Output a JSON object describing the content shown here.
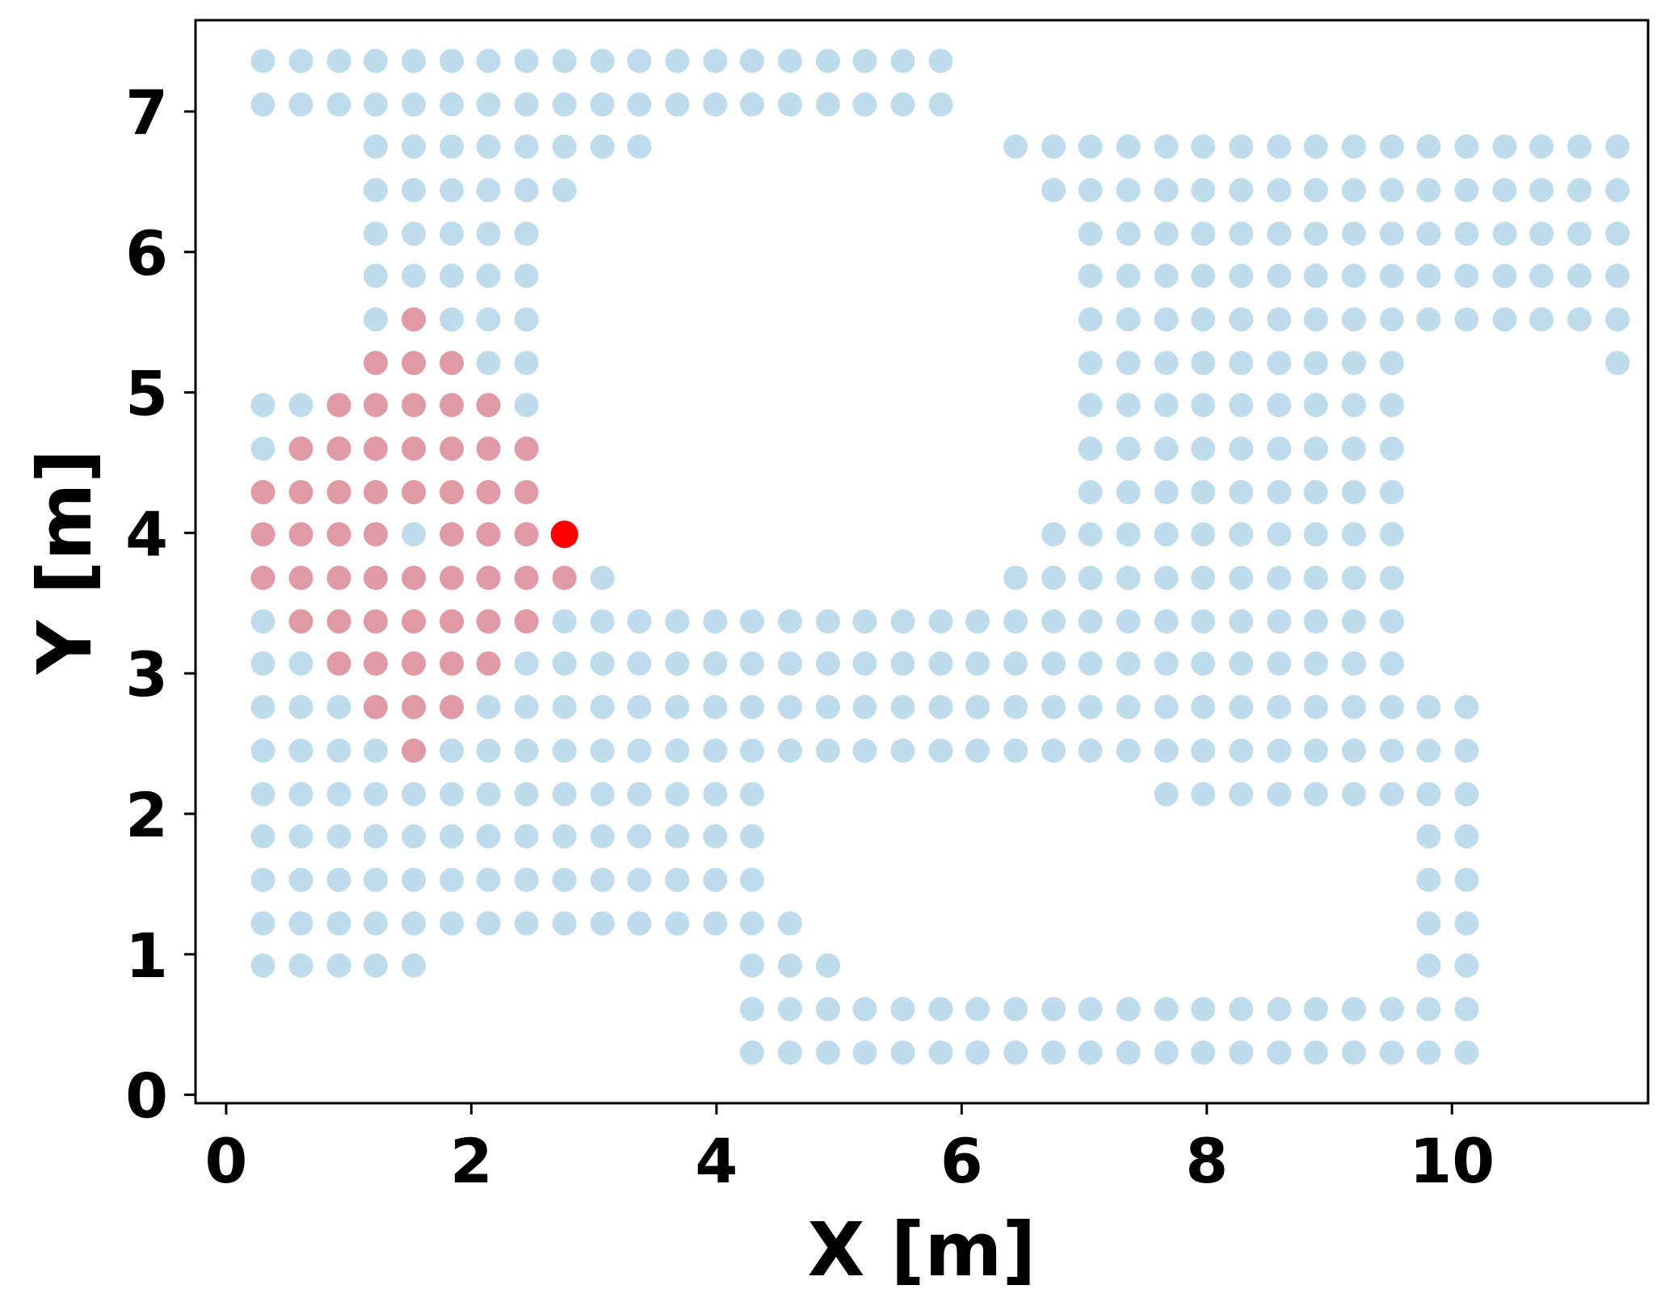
{
  "chart_data": {
    "type": "scatter",
    "title": "",
    "xlabel": "X [m]",
    "ylabel": "Y [m]",
    "xlim": [
      -0.25,
      11.6
    ],
    "ylim": [
      -0.06,
      7.65
    ],
    "xticks": [
      0,
      2,
      4,
      6,
      8,
      10
    ],
    "yticks": [
      0,
      1,
      2,
      3,
      4,
      5,
      6,
      7
    ],
    "grid": false,
    "legend": "none",
    "colors": {
      "grid_points": "#a8d0e6",
      "neighborhood_points": "#d98896",
      "selected_point": "#ff0000"
    },
    "x_grid": [
      0.3,
      0.61,
      0.92,
      1.22,
      1.53,
      1.84,
      2.14,
      2.45,
      2.76,
      3.07,
      3.37,
      3.68,
      3.99,
      4.29,
      4.6,
      4.91,
      5.21,
      5.52,
      5.83,
      6.13,
      6.44,
      6.75,
      7.05,
      7.36,
      7.67,
      7.97,
      8.28,
      8.59,
      8.89,
      9.2,
      9.51,
      9.81,
      10.12,
      10.43,
      10.73,
      11.04,
      11.35
    ],
    "y_grid": [
      0.3,
      0.61,
      0.92,
      1.22,
      1.53,
      1.84,
      2.14,
      2.45,
      2.76,
      3.07,
      3.37,
      3.68,
      3.99,
      4.29,
      4.6,
      4.91,
      5.21,
      5.52,
      5.83,
      6.13,
      6.44,
      6.75,
      7.05,
      7.36
    ],
    "point_rows": [
      {
        "y": 7.36,
        "ranges": [
          [
            4,
            22
          ]
        ],
        "highlight": []
      },
      {
        "y": 7.05,
        "ranges": [
          [
            4,
            22
          ]
        ],
        "highlight": []
      },
      {
        "y": 6.75,
        "ranges": [
          [
            7,
            14
          ],
          [
            24,
            40
          ]
        ],
        "highlight": []
      },
      {
        "y": 6.44,
        "ranges": [
          [
            7,
            12
          ],
          [
            25,
            40
          ]
        ],
        "highlight": []
      },
      {
        "y": 6.13,
        "ranges": [
          [
            7,
            11
          ],
          [
            26,
            40
          ]
        ],
        "highlight": []
      },
      {
        "y": 5.83,
        "ranges": [
          [
            7,
            11
          ],
          [
            26,
            40
          ]
        ],
        "highlight": []
      },
      {
        "y": 5.52,
        "ranges": [
          [
            7,
            11
          ],
          [
            26,
            40
          ]
        ],
        "highlight": [
          8
        ]
      },
      {
        "y": 5.21,
        "ranges": [
          [
            7,
            11
          ],
          [
            26,
            34
          ],
          [
            40,
            40
          ]
        ],
        "highlight": [
          7,
          8,
          9
        ]
      },
      {
        "y": 4.91,
        "ranges": [
          [
            4,
            11
          ],
          [
            26,
            34
          ]
        ],
        "highlight": [
          6,
          7,
          8,
          9,
          10
        ]
      },
      {
        "y": 4.6,
        "ranges": [
          [
            4,
            11
          ],
          [
            26,
            34
          ]
        ],
        "highlight": [
          5,
          6,
          7,
          8,
          9,
          10,
          11
        ]
      },
      {
        "y": 4.29,
        "ranges": [
          [
            4,
            11
          ],
          [
            26,
            34
          ]
        ],
        "highlight": [
          4,
          5,
          6,
          7,
          8,
          9,
          10,
          11
        ]
      },
      {
        "y": 3.99,
        "ranges": [
          [
            4,
            12
          ],
          [
            25,
            34
          ]
        ],
        "highlight": [
          4,
          5,
          6,
          7,
          9,
          10,
          11,
          12
        ]
      },
      {
        "y": 3.68,
        "ranges": [
          [
            4,
            13
          ],
          [
            24,
            34
          ]
        ],
        "highlight": [
          4,
          5,
          6,
          7,
          8,
          9,
          10,
          11,
          12
        ]
      },
      {
        "y": 3.37,
        "ranges": [
          [
            4,
            34
          ]
        ],
        "highlight": [
          5,
          6,
          7,
          8,
          9,
          10,
          11
        ]
      },
      {
        "y": 3.07,
        "ranges": [
          [
            4,
            34
          ]
        ],
        "highlight": [
          6,
          7,
          8,
          9,
          10
        ]
      },
      {
        "y": 2.76,
        "ranges": [
          [
            4,
            36
          ]
        ],
        "highlight": [
          7,
          8,
          9
        ]
      },
      {
        "y": 2.45,
        "ranges": [
          [
            4,
            36
          ]
        ],
        "highlight": [
          8
        ]
      },
      {
        "y": 2.14,
        "ranges": [
          [
            4,
            17
          ],
          [
            28,
            36
          ]
        ],
        "highlight": []
      },
      {
        "y": 1.84,
        "ranges": [
          [
            0,
            17
          ],
          [
            35,
            36
          ]
        ],
        "highlight": []
      },
      {
        "y": 1.53,
        "ranges": [
          [
            0,
            17
          ],
          [
            35,
            36
          ]
        ],
        "highlight": []
      },
      {
        "y": 1.22,
        "ranges": [
          [
            0,
            18
          ],
          [
            35,
            36
          ]
        ],
        "highlight": []
      },
      {
        "y": 0.92,
        "ranges": [
          [
            0,
            8
          ],
          [
            17,
            19
          ],
          [
            35,
            36
          ]
        ],
        "highlight": []
      },
      {
        "y": 0.61,
        "ranges": [
          [
            17,
            36
          ]
        ],
        "highlight": []
      },
      {
        "y": 0.3,
        "ranges": [
          [
            17,
            36
          ]
        ],
        "highlight": []
      }
    ],
    "point_x_index_offset": -4,
    "selected_point": {
      "x": 2.76,
      "y": 3.99
    }
  }
}
